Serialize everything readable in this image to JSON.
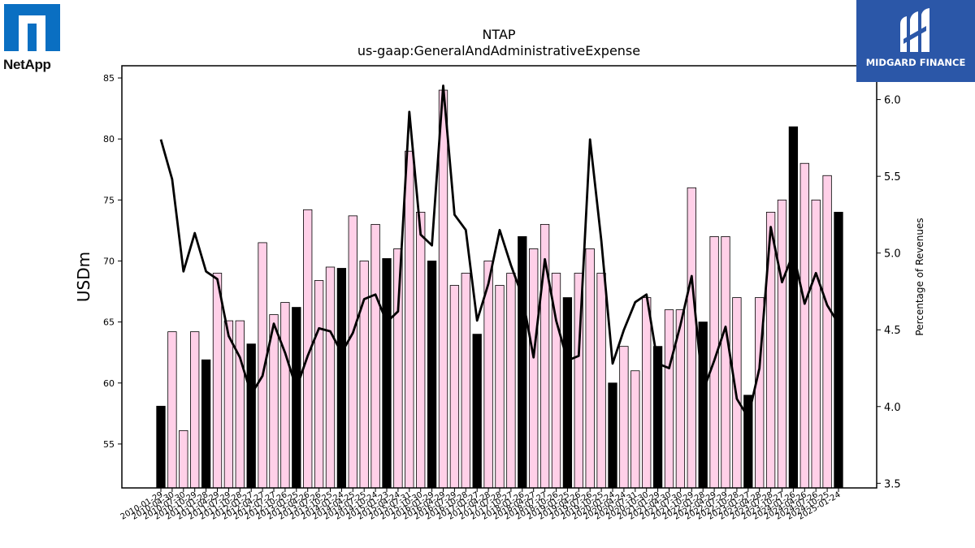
{
  "chart_data": {
    "type": "bar+line",
    "title": "NTAP",
    "subtitle": "us-gaap:GeneralAndAdministrativeExpense",
    "ylabel": "USDm",
    "y2label": "Percentage of Revenues",
    "ylim": [
      51.4,
      86
    ],
    "y2lim": [
      3.47,
      6.22
    ],
    "yticks": [
      55,
      60,
      65,
      70,
      75,
      80,
      85
    ],
    "y2ticks": [
      3.5,
      4.0,
      4.5,
      5.0,
      5.5,
      6.0
    ],
    "x_tick_labels": [
      "2010-01-29",
      "2010-04-30",
      "2010-07-30",
      "2010-10-29",
      "2011-01-28",
      "2011-04-29",
      "2011-07-29",
      "2011-10-28",
      "2012-01-27",
      "2012-04-27",
      "2012-07-27",
      "2012-10-26",
      "2013-01-25",
      "2013-04-26",
      "2013-07-26",
      "2013-10-25",
      "2014-01-24",
      "2014-04-25",
      "2014-07-25",
      "2014-10-24",
      "2015-01-23",
      "2015-04-24",
      "2015-07-31",
      "2015-10-30",
      "2016-01-29",
      "2016-04-29",
      "2016-07-29",
      "2016-10-28",
      "2017-01-27",
      "2017-04-28",
      "2017-07-28",
      "2017-10-27",
      "2018-01-26",
      "2018-04-27",
      "2018-07-27",
      "2018-10-26",
      "2019-01-25",
      "2019-04-26",
      "2019-07-26",
      "2019-10-25",
      "2020-01-24",
      "2020-04-24",
      "2020-07-31",
      "2020-10-30",
      "2021-01-29",
      "2021-04-30",
      "2021-07-30",
      "2021-10-29",
      "2022-01-28",
      "2022-04-29",
      "2022-07-29",
      "2022-10-28",
      "2023-01-27",
      "2023-04-28",
      "2023-07-28",
      "2023-10-27",
      "2024-01-26",
      "2024-04-26",
      "2024-07-26",
      "2024-10-25",
      "2025-01-24"
    ],
    "series": [
      {
        "values": [
          58.1,
          64.2,
          56.1,
          64.2,
          61.9,
          69.0,
          65.1,
          65.1,
          63.2,
          71.5,
          65.6,
          66.6,
          66.2,
          74.2,
          68.4,
          69.5,
          69.4,
          73.7,
          70.0,
          73.0,
          70.2,
          71.0,
          79.0,
          74.0,
          70.0,
          84.0,
          68.0,
          69.0,
          64.0,
          70.0,
          68.0,
          69.0,
          72.0,
          71.0,
          73.0,
          69.0,
          67.0,
          69.0,
          71.0,
          69.0,
          60.0,
          63.0,
          61.0,
          67.0,
          63.0,
          66.0,
          66.0,
          76.0,
          65.0,
          72.0,
          72.0,
          67.0,
          59.0,
          67.0,
          74.0,
          75.0,
          81.0,
          78.0,
          75.0,
          77.0,
          74.0
        ],
        "fourth_quarter": [
          true,
          false,
          false,
          false,
          true,
          false,
          false,
          false,
          true,
          false,
          false,
          false,
          true,
          false,
          false,
          false,
          true,
          false,
          false,
          false,
          true,
          false,
          false,
          false,
          true,
          false,
          false,
          false,
          true,
          false,
          false,
          false,
          true,
          false,
          false,
          false,
          true,
          false,
          false,
          false,
          true,
          false,
          false,
          false,
          true,
          false,
          false,
          false,
          true,
          false,
          false,
          false,
          true,
          false,
          false,
          false,
          true,
          false,
          false,
          false,
          true
        ],
        "colors": {
          "q4": "#000000",
          "other": "#ffd0e8",
          "edge": "#000000"
        }
      },
      {
        "values": [
          5.74,
          5.48,
          4.88,
          5.13,
          4.88,
          4.83,
          4.46,
          4.32,
          4.08,
          4.2,
          4.54,
          4.35,
          4.12,
          4.33,
          4.51,
          4.49,
          4.35,
          4.48,
          4.7,
          4.73,
          4.55,
          4.62,
          5.92,
          5.12,
          5.05,
          6.09,
          5.25,
          5.15,
          4.56,
          4.8,
          5.15,
          4.92,
          4.72,
          4.32,
          4.96,
          4.56,
          4.3,
          4.33,
          5.74,
          5.08,
          4.28,
          4.5,
          4.68,
          4.73,
          4.28,
          4.25,
          4.53,
          4.85,
          4.1,
          4.3,
          4.52,
          4.05,
          3.93,
          4.25,
          5.17,
          4.81,
          5.0,
          4.67,
          4.87,
          4.66,
          4.54
        ],
        "color": "#000000"
      }
    ]
  },
  "logos": {
    "left": "NetApp",
    "right": "MIDGARD FINANCE"
  }
}
